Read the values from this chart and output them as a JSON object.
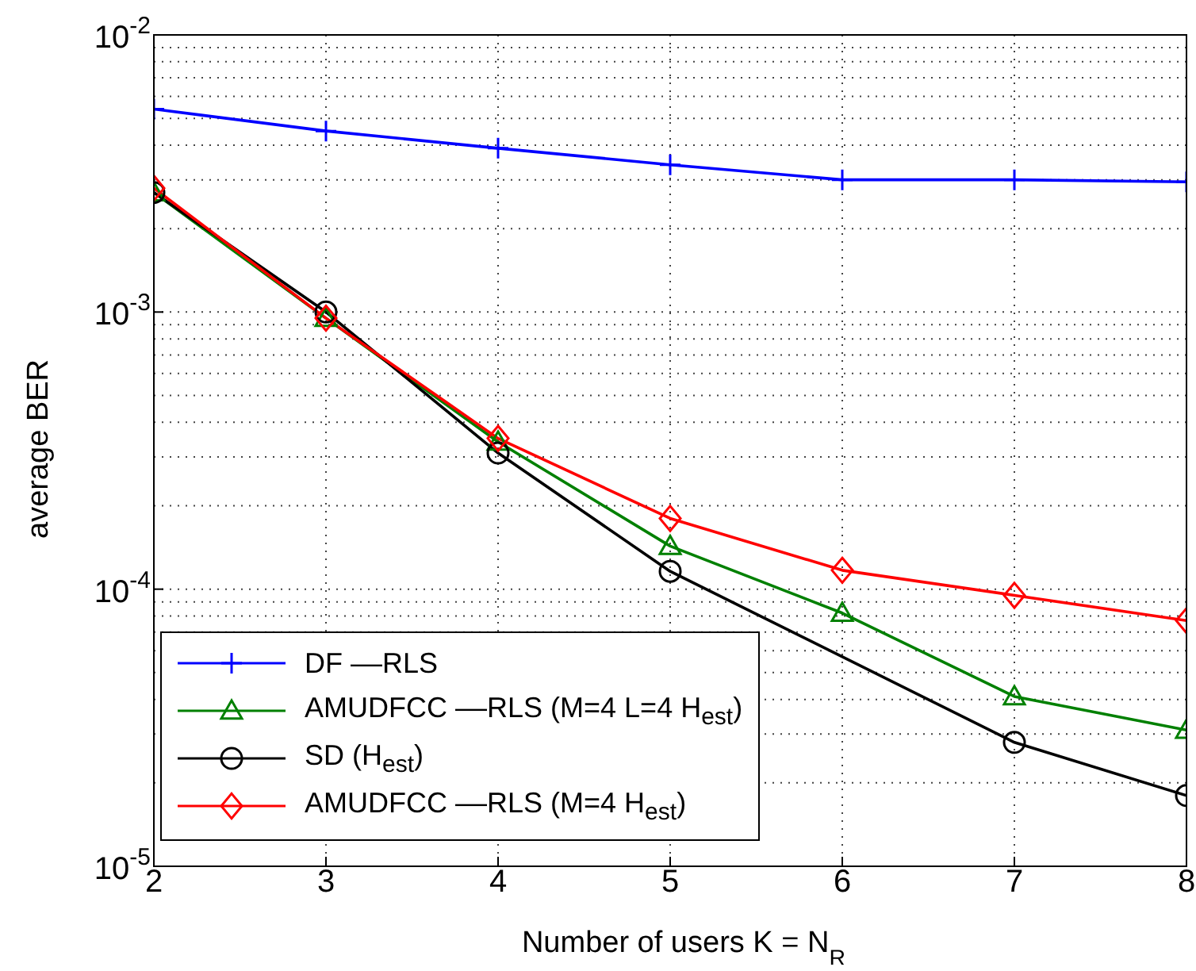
{
  "chart_data": {
    "type": "line",
    "xlabel": "Number of users K = N$_{R}$",
    "ylabel": "average BER",
    "x": [
      2,
      3,
      4,
      5,
      6,
      7,
      8
    ],
    "series": [
      {
        "name": "DF ––RLS",
        "color": "#0000ff",
        "marker": "cross",
        "values": [
          0.0054,
          0.0045,
          0.0039,
          0.0034,
          0.003,
          0.003,
          0.00295
        ]
      },
      {
        "name": "AMUDFCC ––RLS (M=4 L=4 H$_{est}$)",
        "color": "#008000",
        "marker": "triangle",
        "values": [
          0.0027,
          0.00095,
          0.00034,
          0.000143,
          8.2e-05,
          4.1e-05,
          3.1e-05
        ]
      },
      {
        "name": "SD (H$_{est}$)",
        "color": "#000000",
        "marker": "circle",
        "values": [
          0.0027,
          0.001,
          0.00031,
          0.000116,
          null,
          2.8e-05,
          1.8e-05
        ]
      },
      {
        "name": "AMUDFCC ––RLS (M=4 H$_{est}$)",
        "color": "#ff0000",
        "marker": "diamond",
        "values": [
          0.0028,
          0.00095,
          0.00035,
          0.00018,
          0.000117,
          9.5e-05,
          7.7e-05
        ]
      }
    ],
    "log": "y",
    "xlim": [
      2,
      8
    ],
    "xticks": [
      2,
      3,
      4,
      5,
      6,
      7,
      8
    ],
    "ylim": [
      1e-05,
      0.01
    ],
    "yticks": [
      {
        "value": 1e-05,
        "label": "10$^{-5}$"
      },
      {
        "value": 0.0001,
        "label": "10$^{-4}$"
      },
      {
        "value": 0.001,
        "label": "10$^{-3}$"
      },
      {
        "value": 0.01,
        "label": "10$^{-2}$"
      }
    ],
    "grid": true,
    "legend": "bottom left",
    "line_style": "solid"
  }
}
